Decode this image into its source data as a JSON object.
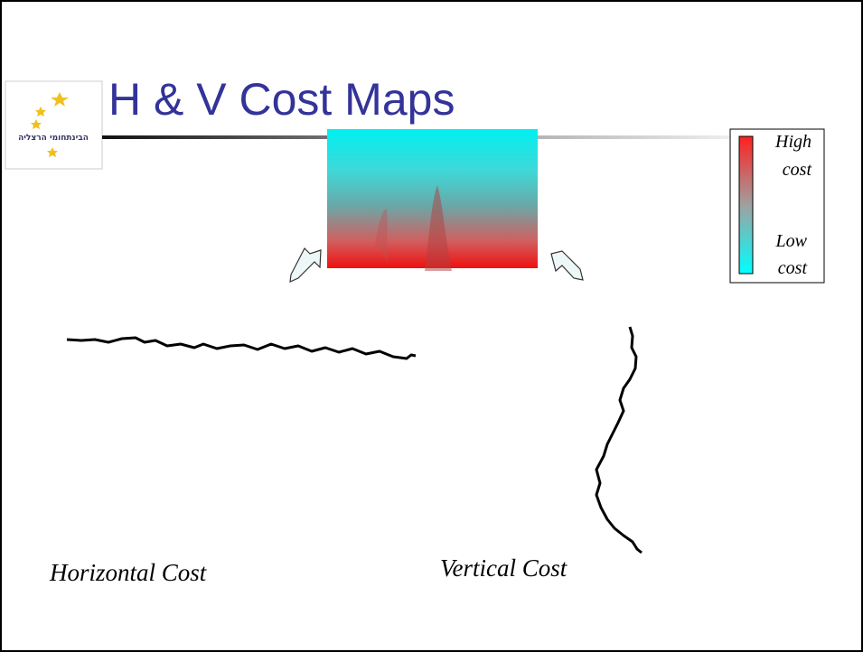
{
  "header": {
    "title": "H & V Cost Maps",
    "logo_text": "הבינתחומי הרצליה"
  },
  "legend": {
    "high": [
      "High",
      "cost"
    ],
    "low": [
      "Low",
      "cost"
    ]
  },
  "captions": {
    "horizontal": "Horizontal Cost",
    "vertical": "Vertical Cost"
  }
}
